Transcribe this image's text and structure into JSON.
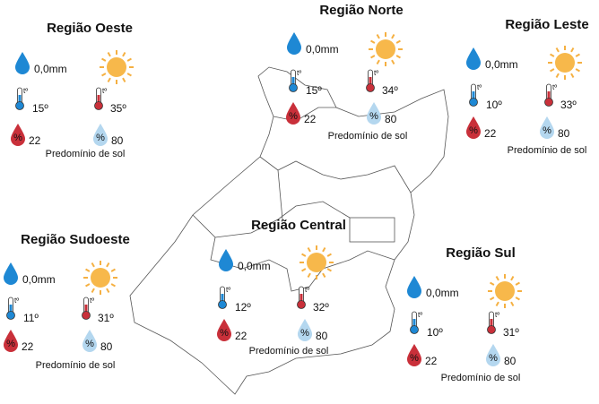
{
  "icons": {
    "temp_symbol": "tº",
    "humidity_symbol": "%"
  },
  "regions": [
    {
      "name": "Região Oeste",
      "rain": "0,0mm",
      "temp_min": "15º",
      "temp_max": "35º",
      "humidity_min": "22",
      "humidity_max": "80",
      "condition": "Predomínio de sol"
    },
    {
      "name": "Região Norte",
      "rain": "0,0mm",
      "temp_min": "15º",
      "temp_max": "34º",
      "humidity_min": "22",
      "humidity_max": "80",
      "condition": "Predomínio de sol"
    },
    {
      "name": "Região Leste",
      "rain": "0,0mm",
      "temp_min": "10º",
      "temp_max": "33º",
      "humidity_min": "22",
      "humidity_max": "80",
      "condition": "Predomínio de sol"
    },
    {
      "name": "Região Sudoeste",
      "rain": "0,0mm",
      "temp_min": "11º",
      "temp_max": "31º",
      "humidity_min": "22",
      "humidity_max": "80",
      "condition": "Predomínio de sol"
    },
    {
      "name": "Região Central",
      "rain": "0,0mm",
      "temp_min": "12º",
      "temp_max": "32º",
      "humidity_min": "22",
      "humidity_max": "80",
      "condition": "Predomínio de sol"
    },
    {
      "name": "Região Sul",
      "rain": "0,0mm",
      "temp_min": "10º",
      "temp_max": "31º",
      "humidity_min": "22",
      "humidity_max": "80",
      "condition": "Predomínio de sol"
    }
  ]
}
